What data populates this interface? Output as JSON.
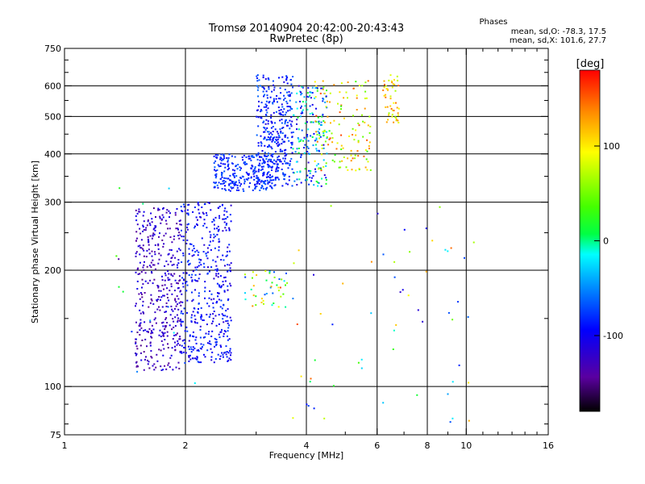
{
  "header": {
    "title": "Tromsø 20140904 20:42:00-20:43:43",
    "subtitle": "RwPretec (8p)"
  },
  "legend": {
    "title": "Phases",
    "line_o": "mean, sd,O: -78.3, 17.5",
    "line_x": "mean, sd,X: 101.6, 27.7"
  },
  "colorbar": {
    "unit_label": "[deg]",
    "ticks": [
      {
        "value": 100,
        "label": "100"
      },
      {
        "value": 0,
        "label": "0"
      },
      {
        "value": -100,
        "label": "-100"
      }
    ],
    "range": [
      -180,
      180
    ],
    "colormap": [
      "#000000",
      "#6600aa",
      "#0000ff",
      "#0088ff",
      "#00ffff",
      "#00ff00",
      "#ffff00",
      "#ff8800",
      "#ff0000"
    ]
  },
  "chart_data": {
    "type": "scatter",
    "title": "Tromsø 20140904 20:42:00-20:43:43",
    "subtitle": "RwPretec (8p)",
    "xlabel": "Frequency [MHz]",
    "ylabel": "Stationary phase Virtual Height [km]",
    "xscale": "log",
    "yscale": "log",
    "xlim": [
      1,
      16
    ],
    "ylim": [
      75,
      750
    ],
    "xticks": [
      1,
      2,
      4,
      6,
      8,
      10,
      16
    ],
    "yticks": [
      75,
      100,
      200,
      300,
      400,
      500,
      600,
      750
    ],
    "xgrid": [
      2,
      4,
      6,
      8,
      10
    ],
    "ygrid": [
      100,
      200,
      300,
      400,
      500,
      600
    ],
    "color_encoding": "phase in degrees (colorbar range -180 to 180)",
    "clusters": [
      {
        "x": [
          1.5,
          1.95
        ],
        "y": [
          110,
          290
        ],
        "phase": [
          -150,
          -100
        ],
        "density": 420
      },
      {
        "x": [
          1.95,
          2.6
        ],
        "y": [
          115,
          300
        ],
        "phase": [
          -120,
          -70
        ],
        "density": 450
      },
      {
        "x": [
          2.35,
          3.3
        ],
        "y": [
          320,
          400
        ],
        "phase": [
          -100,
          -60
        ],
        "density": 260
      },
      {
        "x": [
          3.0,
          3.7
        ],
        "y": [
          330,
          640
        ],
        "phase": [
          -110,
          -60
        ],
        "density": 360
      },
      {
        "x": [
          3.7,
          4.5
        ],
        "y": [
          330,
          600
        ],
        "phase": [
          -120,
          20
        ],
        "density": 170
      },
      {
        "x": [
          4.2,
          5.8
        ],
        "y": [
          360,
          620
        ],
        "phase": [
          20,
          160
        ],
        "density": 140
      },
      {
        "x": [
          6.2,
          6.8
        ],
        "y": [
          480,
          640
        ],
        "phase": [
          60,
          150
        ],
        "density": 50
      },
      {
        "x": [
          2.8,
          3.6
        ],
        "y": [
          160,
          200
        ],
        "phase": [
          -80,
          160
        ],
        "density": 45
      },
      {
        "x": [
          3.7,
          10.5
        ],
        "y": [
          80,
          300
        ],
        "phase": [
          -120,
          160
        ],
        "density": 60
      },
      {
        "x": [
          1.2,
          2.2
        ],
        "y": [
          85,
          370
        ],
        "phase": [
          -150,
          40
        ],
        "density": 18
      }
    ]
  }
}
